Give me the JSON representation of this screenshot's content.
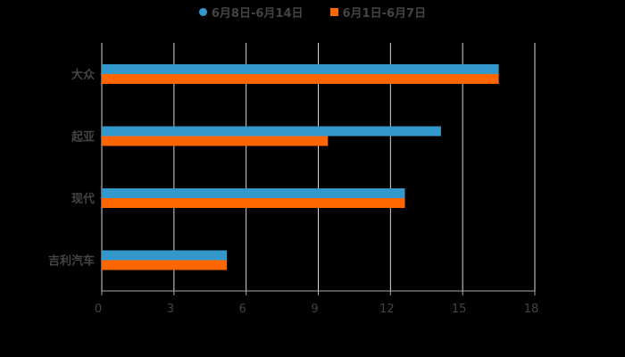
{
  "chart_data": {
    "type": "bar",
    "orientation": "horizontal",
    "title": "",
    "xlabel": "",
    "ylabel": "",
    "categories": [
      "大众",
      "起亚",
      "现代",
      "吉利汽车"
    ],
    "series": [
      {
        "name": "6月8日-6月14日",
        "color": "#3399CC",
        "values": [
          16.5,
          14.1,
          12.6,
          5.2
        ]
      },
      {
        "name": "6月1日-6月7日",
        "color": "#FF6600",
        "values": [
          16.5,
          9.4,
          12.6,
          5.2
        ]
      }
    ],
    "xlim": [
      0,
      18
    ],
    "xticks": [
      0,
      3,
      6,
      9,
      12,
      15,
      18
    ],
    "grid": true,
    "legend_position": "top"
  },
  "legend": {
    "items": [
      {
        "label": "6月8日-6月14日",
        "color": "#3399CC",
        "shape": "circle"
      },
      {
        "label": "6月1日-6月7日",
        "color": "#FF6600",
        "shape": "square"
      }
    ]
  }
}
